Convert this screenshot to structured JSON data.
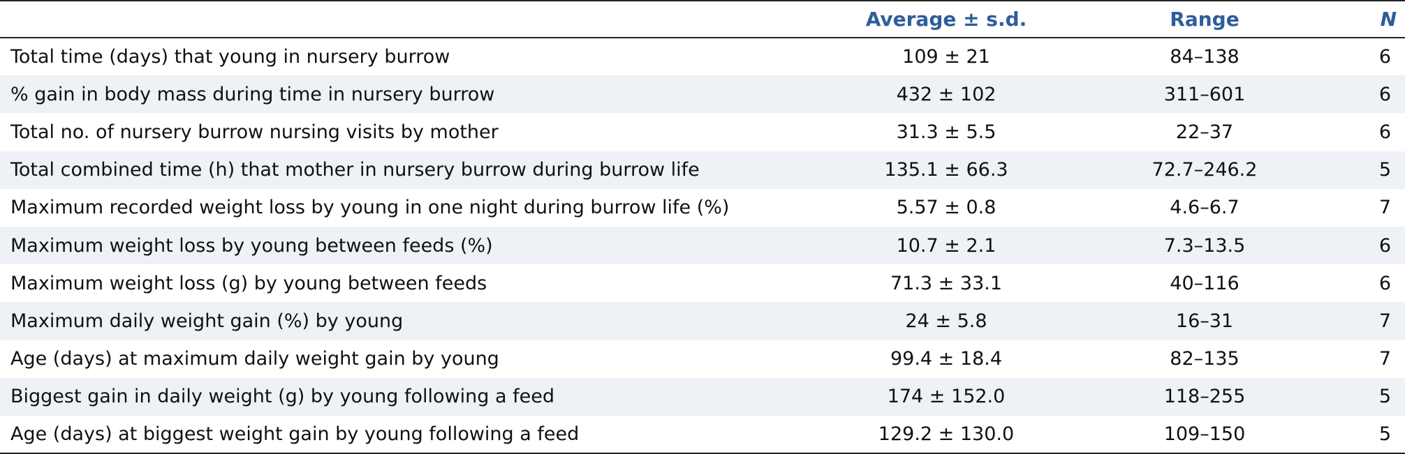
{
  "table": {
    "headers": {
      "label": "",
      "average": "Average ± s.d.",
      "range": "Range",
      "n": "N"
    },
    "rows": [
      {
        "label": "Total time (days) that young in nursery burrow",
        "average": "109 ± 21",
        "range": "84–138",
        "n": "6"
      },
      {
        "label": "% gain in body mass during time in nursery burrow",
        "average": "432 ± 102",
        "range": "311–601",
        "n": "6"
      },
      {
        "label": "Total no. of nursery burrow nursing visits by mother",
        "average": "31.3 ± 5.5",
        "range": "22–37",
        "n": "6"
      },
      {
        "label": "Total combined time (h) that mother in nursery burrow during burrow life",
        "average": "135.1 ± 66.3",
        "range": "72.7–246.2",
        "n": "5"
      },
      {
        "label": "Maximum recorded weight loss by young in one night during burrow life (%)",
        "average": "5.57 ± 0.8",
        "range": "4.6–6.7",
        "n": "7"
      },
      {
        "label": "Maximum weight loss by young between feeds (%)",
        "average": "10.7 ± 2.1",
        "range": "7.3–13.5",
        "n": "6"
      },
      {
        "label": "Maximum weight loss (g) by young between feeds",
        "average": "71.3 ± 33.1",
        "range": "40–116",
        "n": "6"
      },
      {
        "label": "Maximum daily weight gain (%) by young",
        "average": "24 ± 5.8",
        "range": "16–31",
        "n": "7"
      },
      {
        "label": "Age (days) at maximum daily weight gain by young",
        "average": "99.4 ± 18.4",
        "range": "82–135",
        "n": "7"
      },
      {
        "label": "Biggest gain in daily weight (g) by young following a feed",
        "average": "174 ± 152.0",
        "range": "118–255",
        "n": "5"
      },
      {
        "label": "Age (days) at biggest weight gain by young following a feed",
        "average": "129.2 ± 130.0",
        "range": "109–150",
        "n": "5"
      }
    ]
  },
  "colors": {
    "header_text": "#2e5d9b",
    "shaded_row": "#eef1f5",
    "rule": "#222222"
  }
}
